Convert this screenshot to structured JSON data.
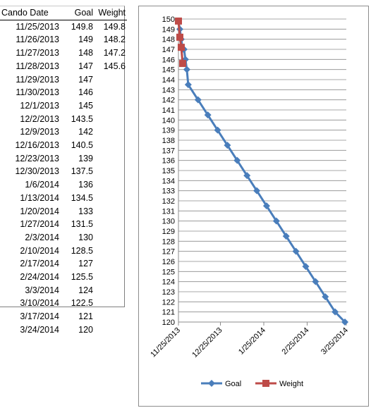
{
  "table": {
    "headers": [
      "Cando Date",
      "Goal",
      "Weight"
    ],
    "rows": [
      [
        "11/25/2013",
        "149.8",
        "149.8"
      ],
      [
        "11/26/2013",
        "149",
        "148.2"
      ],
      [
        "11/27/2013",
        "148",
        "147.2"
      ],
      [
        "11/28/2013",
        "147",
        "145.6"
      ],
      [
        "11/29/2013",
        "147",
        ""
      ],
      [
        "11/30/2013",
        "146",
        ""
      ],
      [
        "12/1/2013",
        "145",
        ""
      ],
      [
        "12/2/2013",
        "143.5",
        ""
      ],
      [
        "12/9/2013",
        "142",
        ""
      ],
      [
        "12/16/2013",
        "140.5",
        ""
      ],
      [
        "12/23/2013",
        "139",
        ""
      ],
      [
        "12/30/2013",
        "137.5",
        ""
      ],
      [
        "1/6/2014",
        "136",
        ""
      ],
      [
        "1/13/2014",
        "134.5",
        ""
      ],
      [
        "1/20/2014",
        "133",
        ""
      ],
      [
        "1/27/2014",
        "131.5",
        ""
      ],
      [
        "2/3/2014",
        "130",
        ""
      ],
      [
        "2/10/2014",
        "128.5",
        ""
      ],
      [
        "2/17/2014",
        "127",
        ""
      ],
      [
        "2/24/2014",
        "125.5",
        ""
      ],
      [
        "3/3/2014",
        "124",
        ""
      ],
      [
        "3/10/2014",
        "122.5",
        ""
      ],
      [
        "3/17/2014",
        "121",
        ""
      ],
      [
        "3/24/2014",
        "120",
        ""
      ]
    ]
  },
  "chart_data": {
    "type": "line",
    "title": "",
    "xlabel": "",
    "ylabel": "",
    "ylim": [
      120,
      150
    ],
    "xlim": [
      "11/25/2013",
      "3/25/2014"
    ],
    "y_ticks": [
      "120",
      "121",
      "122",
      "123",
      "124",
      "125",
      "126",
      "127",
      "128",
      "129",
      "130",
      "131",
      "132",
      "133",
      "134",
      "135",
      "136",
      "137",
      "138",
      "139",
      "140",
      "141",
      "142",
      "143",
      "144",
      "145",
      "146",
      "147",
      "148",
      "149",
      "150"
    ],
    "x_ticks": [
      "11/25/2013",
      "12/25/2013",
      "1/25/2014",
      "2/25/2014",
      "3/25/2014"
    ],
    "grid": true,
    "legend_position": "bottom",
    "series": [
      {
        "name": "Goal",
        "color": "#4a7ebb",
        "marker": "diamond",
        "x": [
          "11/25/2013",
          "11/26/2013",
          "11/27/2013",
          "11/28/2013",
          "11/29/2013",
          "11/30/2013",
          "12/1/2013",
          "12/2/2013",
          "12/9/2013",
          "12/16/2013",
          "12/23/2013",
          "12/30/2013",
          "1/6/2014",
          "1/13/2014",
          "1/20/2014",
          "1/27/2014",
          "2/3/2014",
          "2/10/2014",
          "2/17/2014",
          "2/24/2014",
          "3/3/2014",
          "3/10/2014",
          "3/17/2014",
          "3/24/2014"
        ],
        "y": [
          149.8,
          149,
          148,
          147,
          147,
          146,
          145,
          143.5,
          142,
          140.5,
          139,
          137.5,
          136,
          134.5,
          133,
          131.5,
          130,
          128.5,
          127,
          125.5,
          124,
          122.5,
          121,
          120
        ]
      },
      {
        "name": "Weight",
        "color": "#be4b48",
        "marker": "square",
        "x": [
          "11/25/2013",
          "11/26/2013",
          "11/27/2013",
          "11/28/2013"
        ],
        "y": [
          149.8,
          148.2,
          147.2,
          145.6
        ]
      }
    ]
  }
}
